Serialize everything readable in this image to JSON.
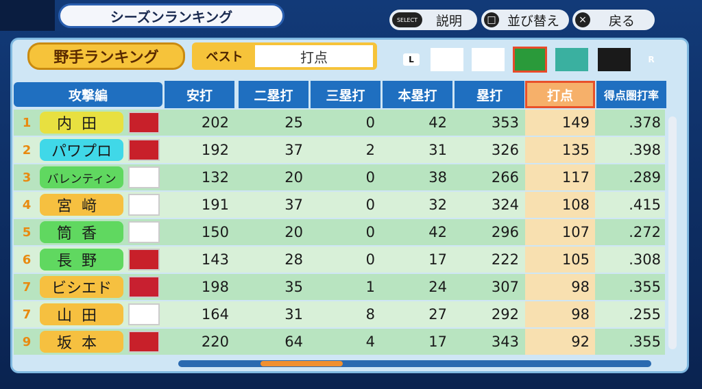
{
  "header": {
    "title": "シーズンランキング",
    "buttons": [
      {
        "key": "SELECT",
        "label": "説明"
      },
      {
        "key": "□",
        "label": "並び替え"
      },
      {
        "key": "×",
        "label": "戻る"
      }
    ]
  },
  "panel": {
    "title": "野手ランキング",
    "filter_label": "ベスト",
    "filter_value": "打点",
    "nav_left": "L",
    "nav_right": "R"
  },
  "table": {
    "section": "攻撃編",
    "columns": [
      "安打",
      "二塁打",
      "三塁打",
      "本塁打",
      "塁打",
      "打点",
      "得点圏打率"
    ],
    "rows": [
      [
        "1",
        "内田",
        202,
        25,
        0,
        42,
        353,
        149,
        ".378"
      ],
      [
        "2",
        "パワプロ",
        192,
        37,
        2,
        31,
        326,
        135,
        ".398"
      ],
      [
        "3",
        "バレンティン",
        132,
        20,
        0,
        38,
        266,
        117,
        ".289"
      ],
      [
        "4",
        "宮﨑",
        191,
        37,
        0,
        32,
        324,
        108,
        ".415"
      ],
      [
        "5",
        "筒香",
        150,
        20,
        0,
        42,
        296,
        107,
        ".272"
      ],
      [
        "6",
        "長野",
        143,
        28,
        0,
        17,
        222,
        105,
        ".308"
      ],
      [
        "7",
        "ビシエド",
        198,
        35,
        1,
        24,
        307,
        98,
        ".355"
      ],
      [
        "7",
        "山田",
        164,
        31,
        8,
        27,
        292,
        98,
        ".255"
      ],
      [
        "9",
        "坂本",
        220,
        64,
        4,
        17,
        343,
        92,
        ".355"
      ]
    ]
  }
}
